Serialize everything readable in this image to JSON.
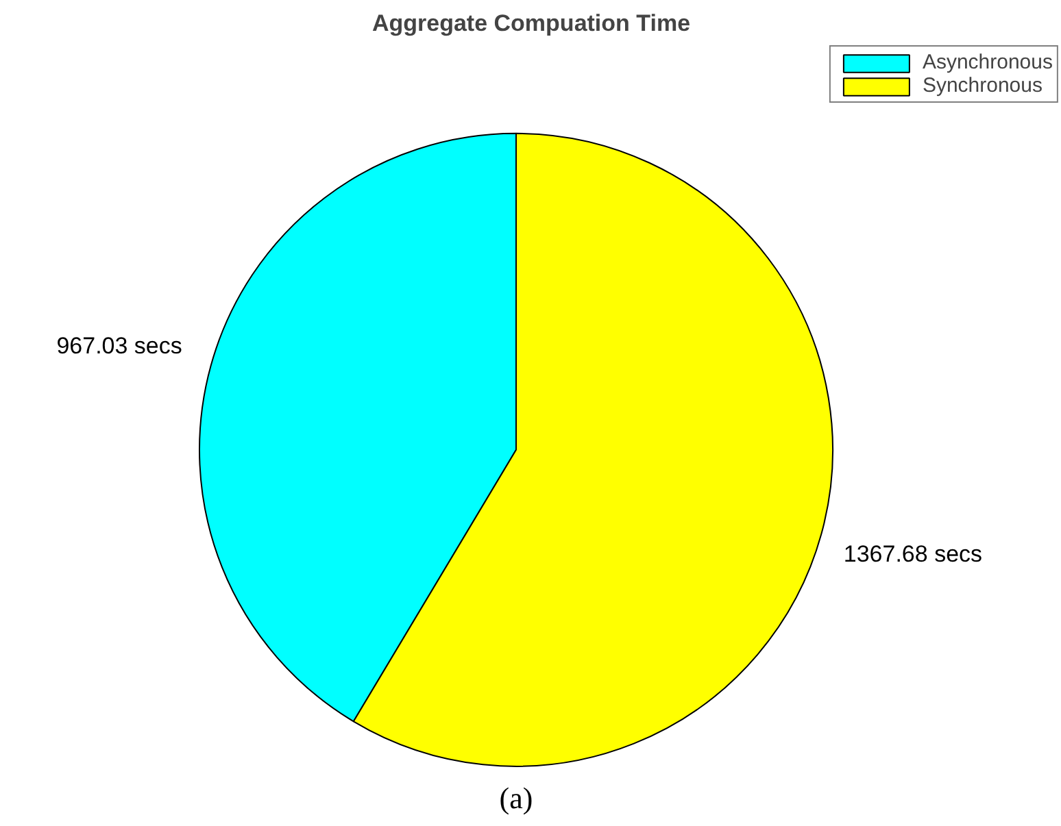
{
  "chart_data": {
    "type": "pie",
    "title": "Aggregate Compuation Time",
    "categories": [
      "Asynchronous",
      "Synchronous"
    ],
    "values": [
      967.03,
      1367.68
    ],
    "colors": [
      "#00ffff",
      "#ffff00"
    ],
    "value_labels": [
      "967.03 secs",
      "1367.68 secs"
    ],
    "legend": "top right",
    "annotations": [
      "(a)"
    ]
  }
}
